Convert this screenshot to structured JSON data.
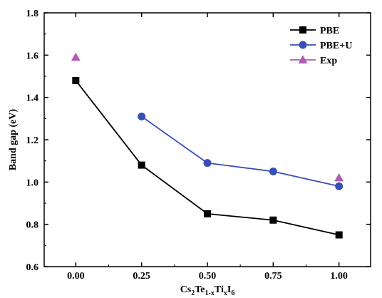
{
  "chart_data": {
    "type": "line",
    "xlabel_parts": [
      "Cs",
      "2",
      "Te",
      "1-x",
      "Ti",
      "x",
      "I",
      "6"
    ],
    "ylabel": "Band gap (eV)",
    "xlim": [
      -0.12,
      1.12
    ],
    "ylim": [
      0.6,
      1.8
    ],
    "x_ticks": [
      0.0,
      0.25,
      0.5,
      0.75,
      1.0
    ],
    "x_tick_labels": [
      "0.00",
      "0.25",
      "0.50",
      "0.75",
      "1.00"
    ],
    "y_ticks": [
      0.6,
      0.8,
      1.0,
      1.2,
      1.4,
      1.6,
      1.8
    ],
    "y_tick_labels": [
      "0.6",
      "0.8",
      "1.0",
      "1.2",
      "1.4",
      "1.6",
      "1.8"
    ],
    "legend_position": "top-right",
    "grid": false,
    "series": [
      {
        "name": "PBE",
        "color": "#000000",
        "marker": "square",
        "connected": true,
        "x": [
          0.0,
          0.25,
          0.5,
          0.75,
          1.0
        ],
        "y": [
          1.48,
          1.08,
          0.85,
          0.82,
          0.75
        ]
      },
      {
        "name": "PBE+U",
        "color": "#3a4fb5",
        "marker": "circle",
        "connected": true,
        "x": [
          0.25,
          0.5,
          0.75,
          1.0
        ],
        "y": [
          1.31,
          1.09,
          1.05,
          0.98
        ]
      },
      {
        "name": "Exp",
        "color": "#b05cb0",
        "marker": "triangle",
        "connected": false,
        "x": [
          0.0,
          1.0
        ],
        "y": [
          1.59,
          1.02
        ]
      }
    ]
  }
}
